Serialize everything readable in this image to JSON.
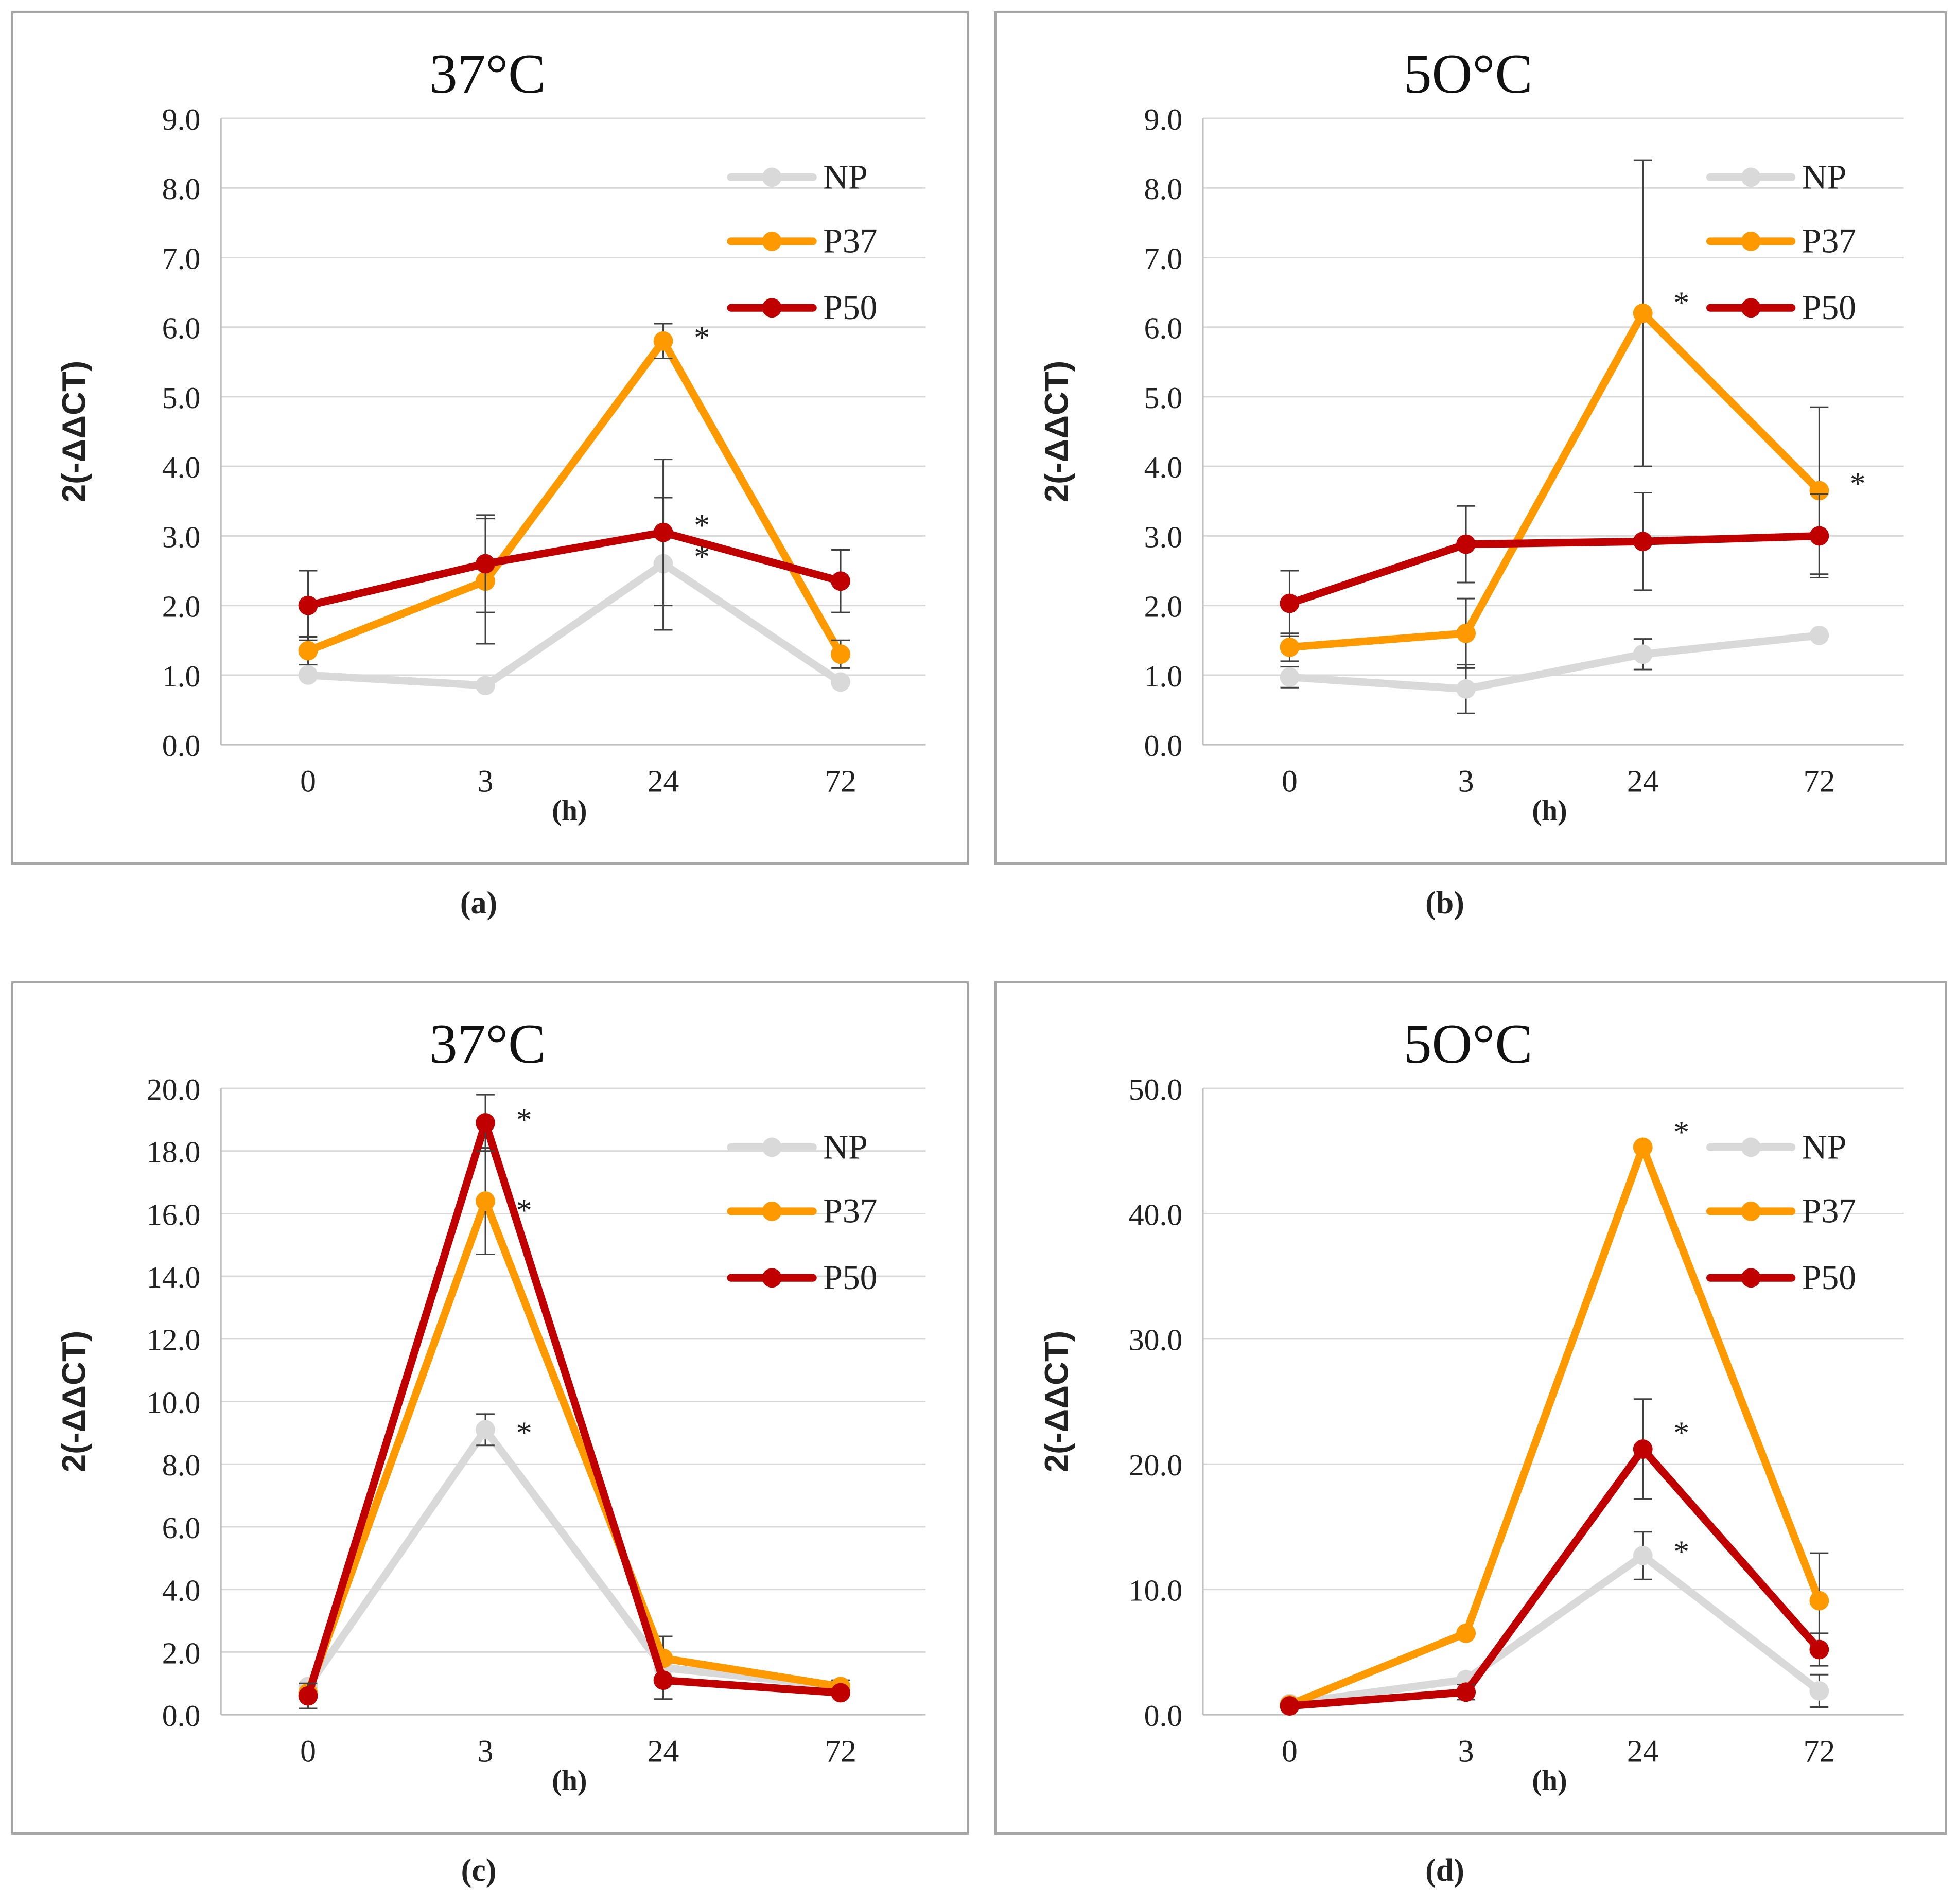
{
  "panels": [
    {
      "id": "a",
      "caption": "(a)",
      "title": "37°C",
      "ylabel": "2(-ΔΔCT)",
      "xlabel": "(h)"
    },
    {
      "id": "b",
      "caption": "(b)",
      "title": "5O°C",
      "ylabel": "2(-ΔΔCT)",
      "xlabel": "(h)"
    },
    {
      "id": "c",
      "caption": "(c)",
      "title": "37°C",
      "ylabel": "2(-ΔΔCT)",
      "xlabel": "(h)"
    },
    {
      "id": "d",
      "caption": "(d)",
      "title": "5O°C",
      "ylabel": "2(-ΔΔCT)",
      "xlabel": "(h)"
    }
  ],
  "colors": {
    "NP": "#d9d9d9",
    "P37": "#ff9900",
    "P50": "#c00000",
    "grid": "#d9d9d9",
    "axis": "#bfbfbf",
    "text": "#222222",
    "errorbar": "#404040"
  },
  "chart_data": [
    {
      "type": "line",
      "title": "37°C",
      "xlabel": "(h)",
      "ylabel": "2(-ΔΔCT)",
      "categories": [
        "0",
        "3",
        "24",
        "72"
      ],
      "ylim": [
        0,
        9
      ],
      "ytick_step": 1,
      "ytick_labels": [
        "0.0",
        "1.0",
        "2.0",
        "3.0",
        "4.0",
        "5.0",
        "6.0",
        "7.0",
        "8.0",
        "9.0"
      ],
      "grid": true,
      "legend": "top-right",
      "series": [
        {
          "name": "NP",
          "values": [
            1.0,
            0.85,
            2.6,
            0.9
          ],
          "err": [
            0,
            0,
            0.95,
            0
          ]
        },
        {
          "name": "P37",
          "values": [
            1.35,
            2.35,
            5.8,
            1.3
          ],
          "err": [
            0.2,
            0.9,
            0.25,
            0.2
          ]
        },
        {
          "name": "P50",
          "values": [
            2.0,
            2.6,
            3.05,
            2.35
          ],
          "err": [
            0.5,
            0.7,
            1.05,
            0.45
          ]
        }
      ],
      "annotations": [
        {
          "text": "*",
          "x": "24",
          "y": 5.85
        },
        {
          "text": "*",
          "x": "24",
          "y": 3.15
        },
        {
          "text": "*",
          "x": "24",
          "y": 2.7
        }
      ]
    },
    {
      "type": "line",
      "title": "5O°C",
      "xlabel": "(h)",
      "ylabel": "2(-ΔΔCT)",
      "categories": [
        "0",
        "3",
        "24",
        "72"
      ],
      "ylim": [
        0,
        9
      ],
      "ytick_step": 1,
      "ytick_labels": [
        "0.0",
        "1.0",
        "2.0",
        "3.0",
        "4.0",
        "5.0",
        "6.0",
        "7.0",
        "8.0",
        "9.0"
      ],
      "grid": true,
      "legend": "top-right",
      "series": [
        {
          "name": "NP",
          "values": [
            0.97,
            0.8,
            1.3,
            1.57
          ],
          "err": [
            0.15,
            0.35,
            0.22,
            0
          ]
        },
        {
          "name": "P37",
          "values": [
            1.4,
            1.6,
            6.2,
            3.65
          ],
          "err": [
            0.2,
            0.5,
            2.2,
            1.2
          ]
        },
        {
          "name": "P50",
          "values": [
            2.03,
            2.88,
            2.92,
            3.0
          ],
          "err": [
            0.47,
            0.55,
            0.7,
            0.6
          ]
        }
      ],
      "annotations": [
        {
          "text": "*",
          "x": "24",
          "y": 6.35
        },
        {
          "text": "*",
          "x": "72",
          "y": 3.75
        }
      ]
    },
    {
      "type": "line",
      "title": "37°C",
      "xlabel": "(h)",
      "ylabel": "2(-ΔΔCT)",
      "categories": [
        "0",
        "3",
        "24",
        "72"
      ],
      "ylim": [
        0,
        20
      ],
      "ytick_step": 2,
      "ytick_labels": [
        "0.0",
        "2.0",
        "4.0",
        "6.0",
        "8.0",
        "10.0",
        "12.0",
        "14.0",
        "16.0",
        "18.0",
        "20.0"
      ],
      "grid": true,
      "legend": "top-right",
      "series": [
        {
          "name": "NP",
          "values": [
            0.9,
            9.1,
            1.5,
            0.9
          ],
          "err": [
            0,
            0.5,
            1.0,
            0.2
          ]
        },
        {
          "name": "P37",
          "values": [
            0.7,
            16.4,
            1.8,
            0.9
          ],
          "err": [
            0,
            1.7,
            0,
            0
          ]
        },
        {
          "name": "P50",
          "values": [
            0.6,
            18.9,
            1.1,
            0.7
          ],
          "err": [
            0.4,
            0.9,
            0,
            0
          ]
        }
      ],
      "annotations": [
        {
          "text": "*",
          "x": "3",
          "y": 19.0
        },
        {
          "text": "*",
          "x": "3",
          "y": 16.1
        },
        {
          "text": "*",
          "x": "3",
          "y": 9.0
        }
      ]
    },
    {
      "type": "line",
      "title": "5O°C",
      "xlabel": "(h)",
      "ylabel": "2(-ΔΔCT)",
      "categories": [
        "0",
        "3",
        "24",
        "72"
      ],
      "ylim": [
        0,
        50
      ],
      "ytick_step": 10,
      "ytick_labels": [
        "0.0",
        "10.0",
        "20.0",
        "30.0",
        "40.0",
        "50.0"
      ],
      "grid": true,
      "legend": "top-right",
      "series": [
        {
          "name": "NP",
          "values": [
            0.9,
            2.8,
            12.7,
            1.9
          ],
          "err": [
            0,
            0,
            1.9,
            1.3
          ]
        },
        {
          "name": "P37",
          "values": [
            0.8,
            6.5,
            45.3,
            9.1
          ],
          "err": [
            0,
            0,
            0,
            3.8
          ]
        },
        {
          "name": "P50",
          "values": [
            0.7,
            1.8,
            21.2,
            5.2
          ],
          "err": [
            0,
            0.6,
            4.0,
            1.3
          ]
        }
      ],
      "annotations": [
        {
          "text": "*",
          "x": "24",
          "y": 46.5
        },
        {
          "text": "*",
          "x": "24",
          "y": 22.5
        },
        {
          "text": "*",
          "x": "24",
          "y": 13.0
        }
      ]
    }
  ]
}
